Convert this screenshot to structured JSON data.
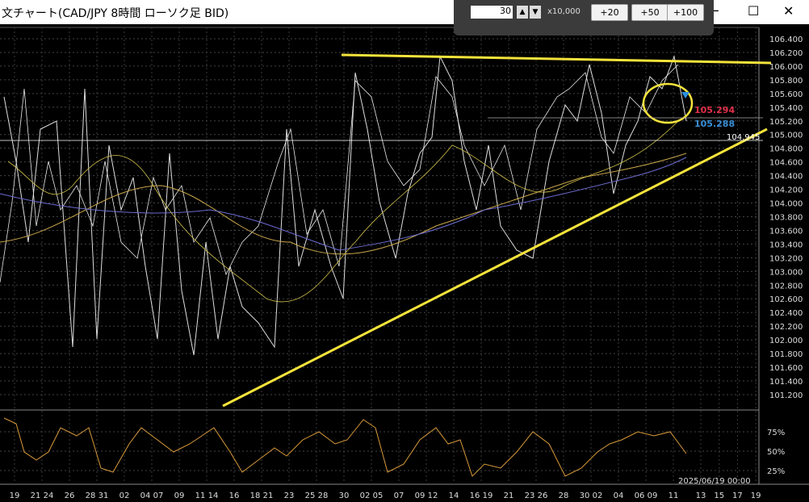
{
  "window": {
    "title": "文チャート(CAD/JPY 8時間 ローソク足 BID)"
  },
  "toolbar": {
    "quantity": "30",
    "unit": "x10,000",
    "buttons": [
      "+20",
      "+50",
      "+100"
    ]
  },
  "price_axis": {
    "labels": [
      "106.400",
      "106.200",
      "106.000",
      "105.800",
      "105.600",
      "105.400",
      "105.200",
      "105.000",
      "104.800",
      "104.600",
      "104.400",
      "104.200",
      "104.000",
      "103.800",
      "103.600",
      "103.400",
      "103.200",
      "103.000",
      "102.800",
      "102.600",
      "102.400",
      "102.200",
      "102.000",
      "101.800",
      "101.600",
      "101.400",
      "101.200"
    ]
  },
  "price_tags": {
    "ask": "105.294",
    "bid": "105.288",
    "line": "104.945"
  },
  "oscillator_axis": {
    "labels": [
      "75%",
      "50%",
      "25%"
    ]
  },
  "date_axis": {
    "labels": [
      "19",
      "21 24",
      "26",
      "28 31",
      "02",
      "04 07",
      "09",
      "11 14",
      "16",
      "18 21",
      "23",
      "25 28",
      "30",
      "02 05",
      "07",
      "09 12",
      "14",
      "16 19",
      "21",
      "23 26",
      "28",
      "30 02",
      "04",
      "06 09",
      "11",
      "13",
      "15",
      "17",
      "19"
    ],
    "cursor_time": "2025/06/19 00:00"
  }
}
